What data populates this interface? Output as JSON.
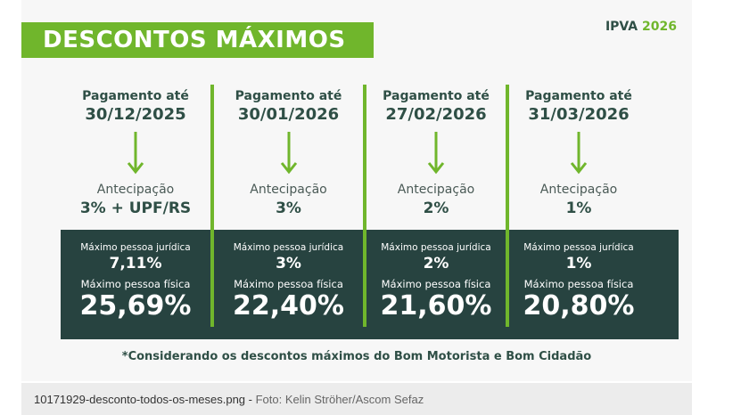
{
  "header": {
    "title": "DESCONTOS MÁXIMOS",
    "ipva_label": "IPVA",
    "ipva_year": "2026"
  },
  "columns": [
    {
      "pay_label": "Pagamento até",
      "pay_date": "30/12/2025",
      "ant_label": "Antecipação",
      "ant_value": "3% + UPF/RS",
      "pj_label": "Máximo pessoa jurídica",
      "pj_value": "7,11%",
      "pf_label": "Máximo pessoa física",
      "pf_value": "25,69%"
    },
    {
      "pay_label": "Pagamento até",
      "pay_date": "30/01/2026",
      "ant_label": "Antecipação",
      "ant_value": "3%",
      "pj_label": "Máximo pessoa jurídica",
      "pj_value": "3%",
      "pf_label": "Máximo pessoa física",
      "pf_value": "22,40%"
    },
    {
      "pay_label": "Pagamento até",
      "pay_date": "27/02/2026",
      "ant_label": "Antecipação",
      "ant_value": "2%",
      "pj_label": "Máximo pessoa jurídica",
      "pj_value": "2%",
      "pf_label": "Máximo pessoa física",
      "pf_value": "21,60%"
    },
    {
      "pay_label": "Pagamento até",
      "pay_date": "31/03/2026",
      "ant_label": "Antecipação",
      "ant_value": "1%",
      "pj_label": "Máximo pessoa jurídica",
      "pj_value": "1%",
      "pf_label": "Máximo pessoa física",
      "pf_value": "20,80%"
    }
  ],
  "footnote": "*Considerando os descontos máximos do Bom Motorista e Bom Cidadão",
  "caption": {
    "filename": "10171929-desconto-todos-os-meses.png",
    "separator": " - ",
    "credit": "Foto: Kelin Ströher/Ascom Sefaz"
  },
  "colors": {
    "accent_green": "#70b62c",
    "dark_band": "#274340",
    "text_dark": "#2f4f46"
  }
}
